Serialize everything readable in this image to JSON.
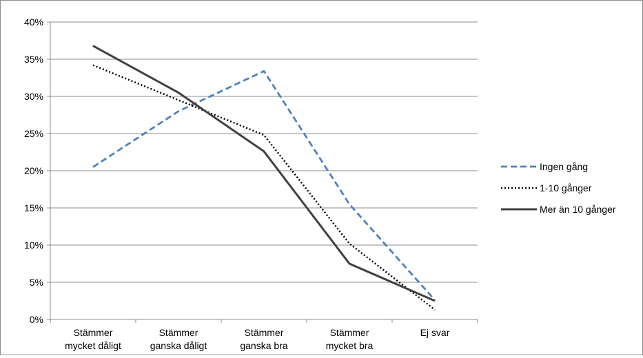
{
  "chart_data": {
    "type": "line",
    "title": "",
    "xlabel": "",
    "ylabel": "",
    "categories": [
      [
        "Stämmer",
        "mycket dåligt"
      ],
      [
        "Stämmer",
        "ganska dåligt"
      ],
      [
        "Stämmer",
        "ganska bra"
      ],
      [
        "Stämmer",
        "mycket bra"
      ],
      [
        "Ej svar"
      ]
    ],
    "yticks": [
      "0%",
      "5%",
      "10%",
      "15%",
      "20%",
      "25%",
      "30%",
      "35%",
      "40%"
    ],
    "ylim": [
      0,
      40
    ],
    "grid": true,
    "legend_position": "right",
    "series": [
      {
        "name": "Ingen gång",
        "values": [
          20.5,
          28.0,
          33.4,
          15.5,
          2.6
        ],
        "color": "#4f81bd",
        "dash": "dashed"
      },
      {
        "name": "1-10 gånger",
        "values": [
          34.2,
          29.5,
          24.8,
          10.2,
          1.3
        ],
        "color": "#000000",
        "dash": "dotted"
      },
      {
        "name": "Mer än 10 gånger",
        "values": [
          36.8,
          30.5,
          22.6,
          7.5,
          2.5
        ],
        "color": "#404040",
        "dash": "solid"
      }
    ]
  }
}
